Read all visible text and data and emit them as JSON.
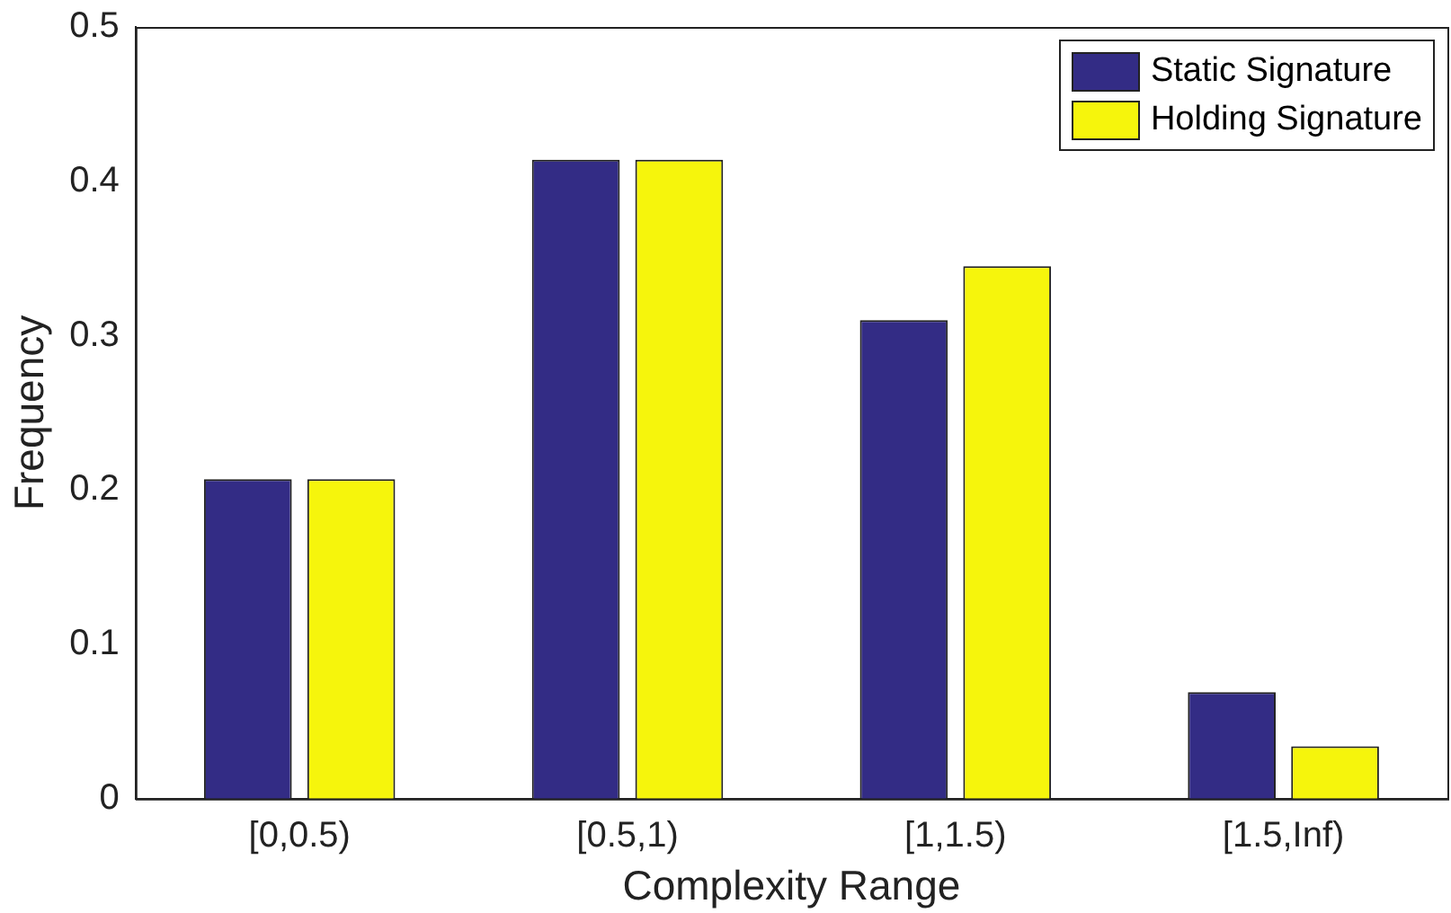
{
  "chart_data": {
    "type": "bar",
    "xlabel": "Complexity Range",
    "ylabel": "Frequency",
    "categories": [
      "[0,0.5)",
      "[0.5,1)",
      "[1,1.5)",
      "[1.5,Inf)"
    ],
    "series": [
      {
        "name": "Static Signature",
        "color": "#332c85",
        "values": [
          0.207,
          0.414,
          0.31,
          0.069
        ]
      },
      {
        "name": "Holding Signature",
        "color": "#f6f50c",
        "values": [
          0.207,
          0.414,
          0.345,
          0.034
        ]
      }
    ],
    "ylim": [
      0,
      0.5
    ],
    "yticks": [
      0,
      0.1,
      0.2,
      0.3,
      0.4,
      0.5
    ],
    "grid": false,
    "legend": "top right"
  }
}
